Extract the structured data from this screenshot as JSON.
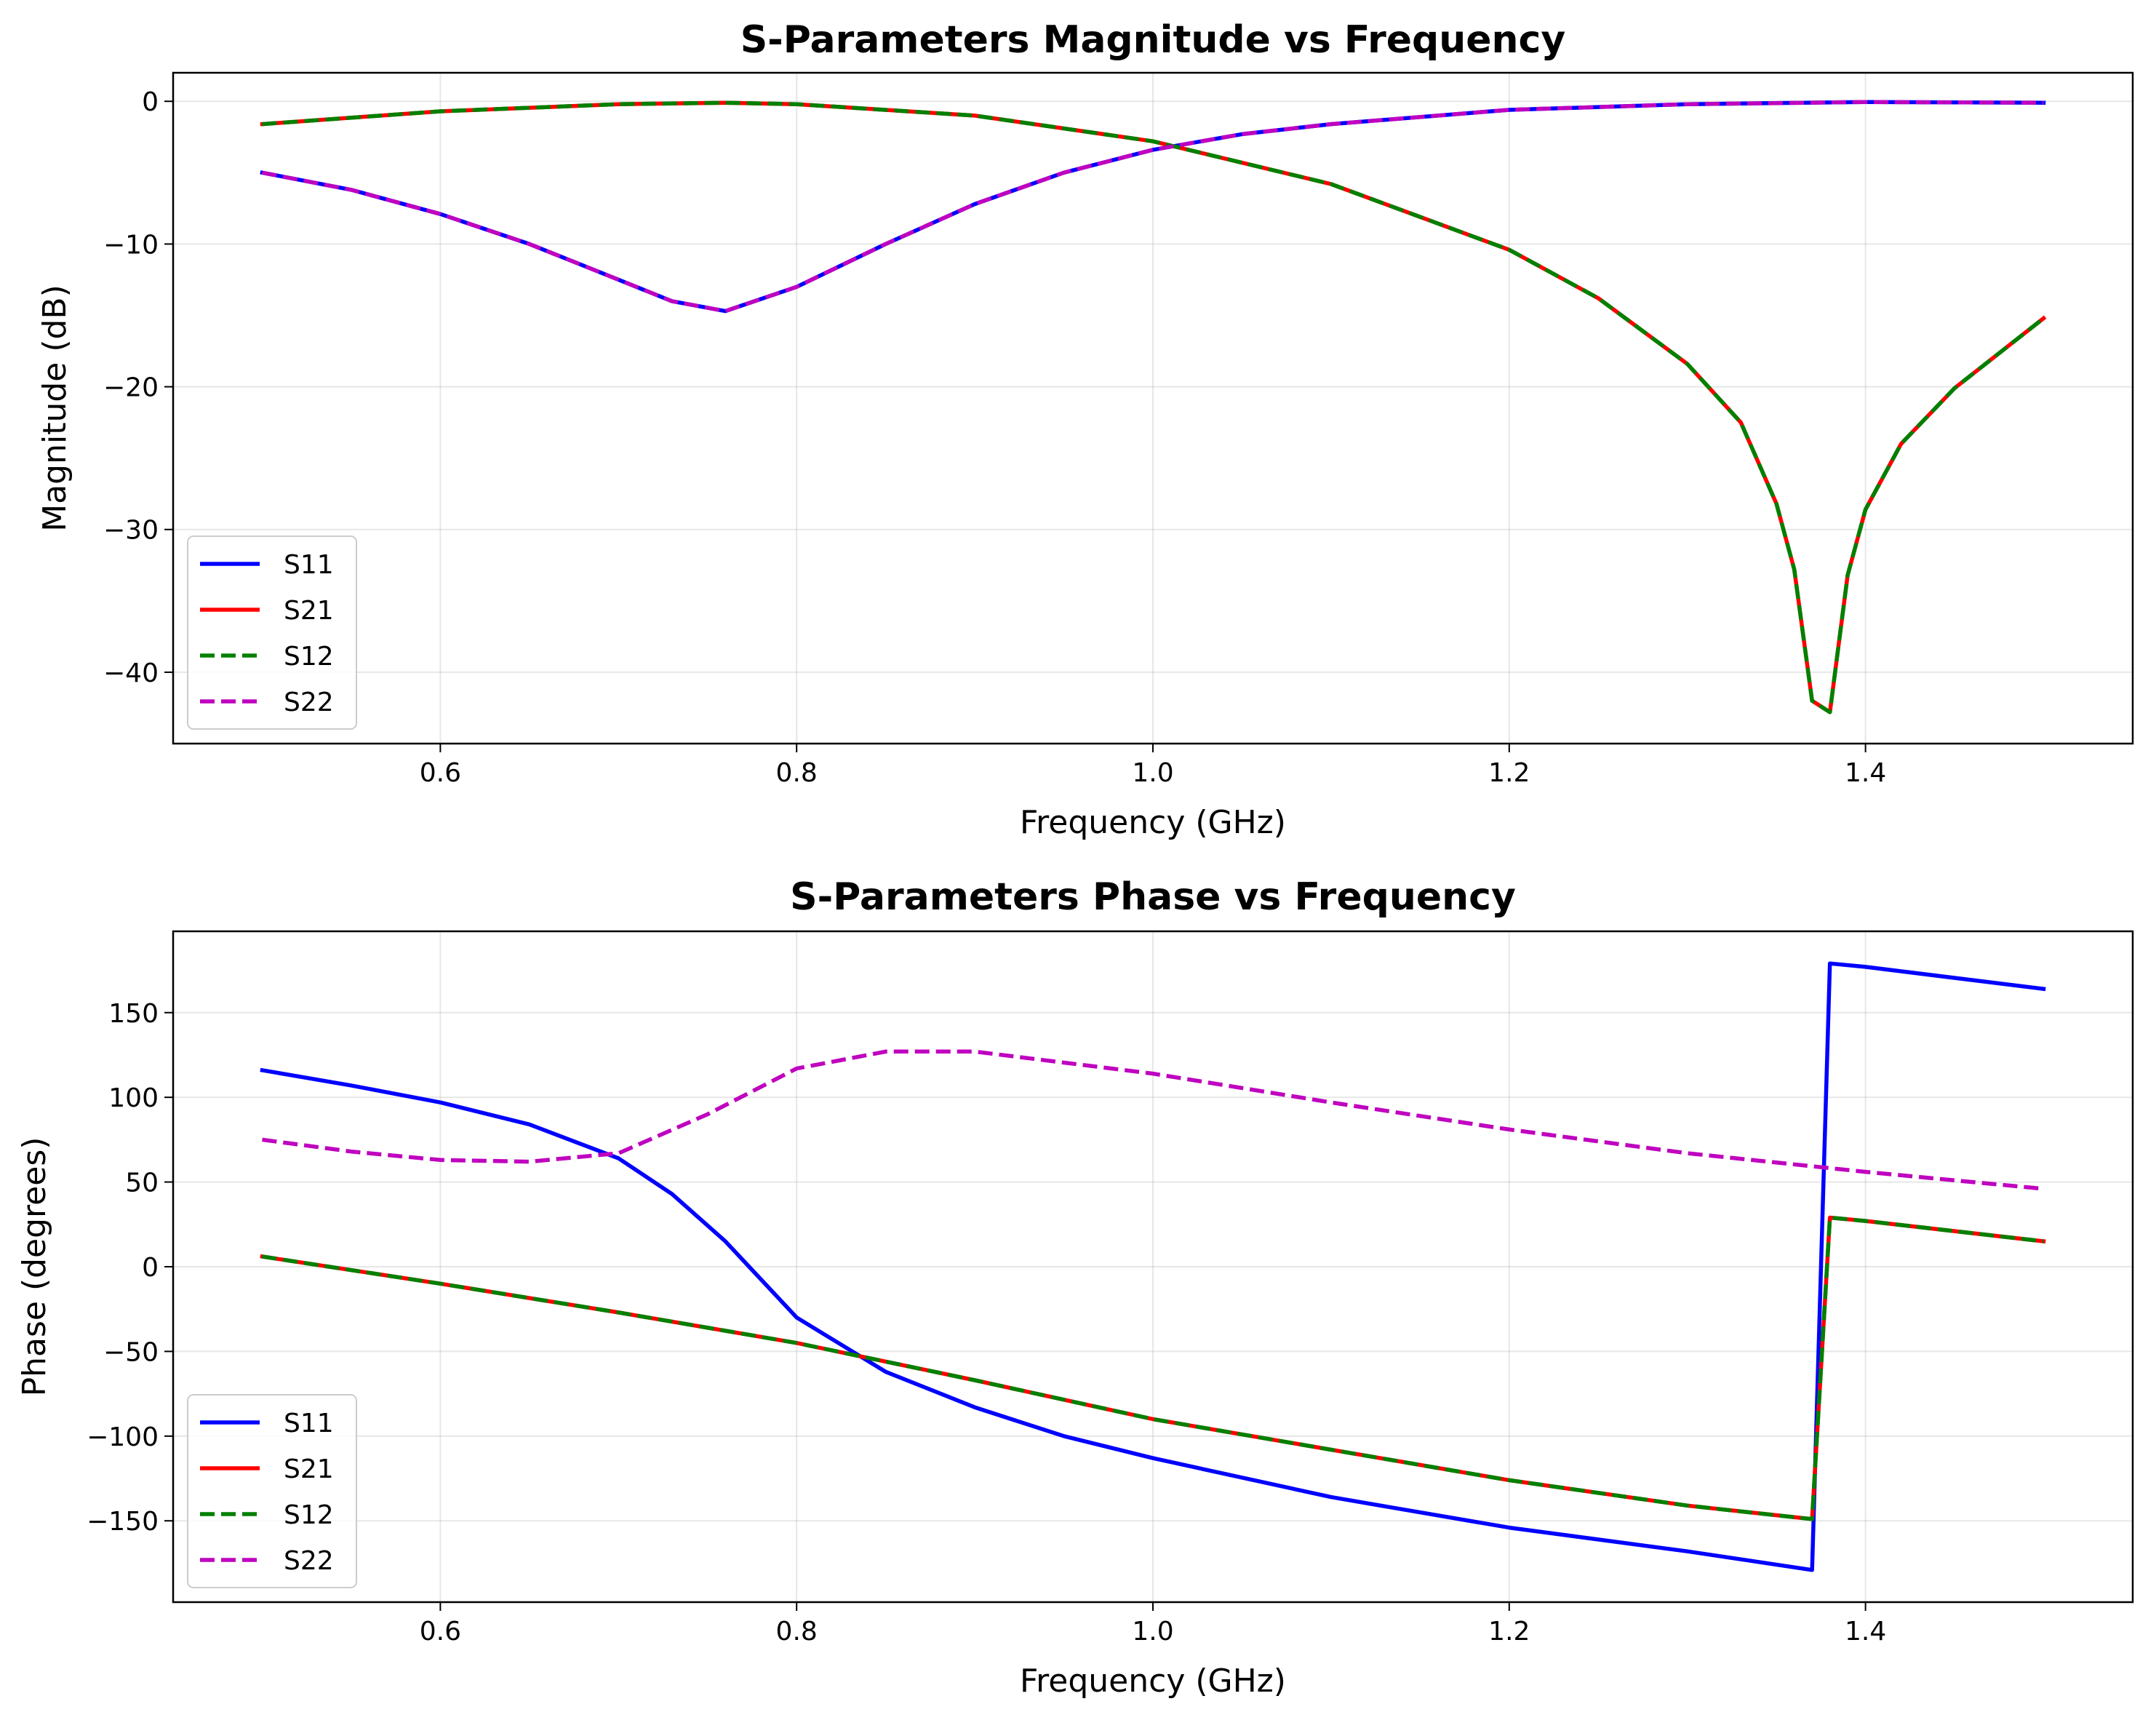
{
  "chart_data": [
    {
      "type": "line",
      "title": "S-Parameters Magnitude vs Frequency",
      "xlabel": "Frequency (GHz)",
      "ylabel": "Magnitude (dB)",
      "xlim": [
        0.45,
        1.55
      ],
      "ylim": [
        -45,
        2
      ],
      "xticks": [
        0.6,
        0.8,
        1.0,
        1.2,
        1.4
      ],
      "xtick_labels": [
        "0.6",
        "0.8",
        "1.0",
        "1.2",
        "1.4"
      ],
      "yticks": [
        0,
        -10,
        -20,
        -30,
        -40
      ],
      "ytick_labels": [
        "0",
        "−10",
        "−20",
        "−30",
        "−40"
      ],
      "grid": true,
      "legend_position": "lower-left",
      "series": [
        {
          "name": "S11",
          "color": "#0000ff",
          "dash": "solid",
          "x": [
            0.5,
            0.55,
            0.6,
            0.65,
            0.7,
            0.73,
            0.76,
            0.8,
            0.85,
            0.9,
            0.95,
            1.0,
            1.05,
            1.1,
            1.2,
            1.3,
            1.4,
            1.5
          ],
          "y": [
            -5.0,
            -6.2,
            -7.9,
            -10.0,
            -12.5,
            -14.0,
            -14.7,
            -13.0,
            -10.0,
            -7.2,
            -5.0,
            -3.4,
            -2.3,
            -1.6,
            -0.6,
            -0.2,
            -0.05,
            -0.1
          ]
        },
        {
          "name": "S21",
          "color": "#ff0000",
          "dash": "solid",
          "x": [
            0.5,
            0.6,
            0.7,
            0.76,
            0.8,
            0.9,
            1.0,
            1.1,
            1.2,
            1.25,
            1.3,
            1.33,
            1.35,
            1.36,
            1.37,
            1.38,
            1.39,
            1.4,
            1.42,
            1.45,
            1.5
          ],
          "y": [
            -1.6,
            -0.7,
            -0.2,
            -0.1,
            -0.2,
            -1.0,
            -2.8,
            -5.8,
            -10.4,
            -13.8,
            -18.4,
            -22.5,
            -28.2,
            -32.8,
            -42.0,
            -42.8,
            -33.2,
            -28.6,
            -24.0,
            -20.1,
            -15.2
          ]
        },
        {
          "name": "S12",
          "color": "#008000",
          "dash": "dashed",
          "x": [
            0.5,
            0.6,
            0.7,
            0.76,
            0.8,
            0.9,
            1.0,
            1.1,
            1.2,
            1.25,
            1.3,
            1.33,
            1.35,
            1.36,
            1.37,
            1.38,
            1.39,
            1.4,
            1.42,
            1.45,
            1.5
          ],
          "y": [
            -1.6,
            -0.7,
            -0.2,
            -0.1,
            -0.2,
            -1.0,
            -2.8,
            -5.8,
            -10.4,
            -13.8,
            -18.4,
            -22.5,
            -28.2,
            -32.8,
            -42.0,
            -42.8,
            -33.2,
            -28.6,
            -24.0,
            -20.1,
            -15.2
          ]
        },
        {
          "name": "S22",
          "color": "#bf00bf",
          "dash": "dashed",
          "x": [
            0.5,
            0.55,
            0.6,
            0.65,
            0.7,
            0.73,
            0.76,
            0.8,
            0.85,
            0.9,
            0.95,
            1.0,
            1.05,
            1.1,
            1.2,
            1.3,
            1.4,
            1.5
          ],
          "y": [
            -5.0,
            -6.2,
            -7.9,
            -10.0,
            -12.5,
            -14.0,
            -14.7,
            -13.0,
            -10.0,
            -7.2,
            -5.0,
            -3.4,
            -2.3,
            -1.6,
            -0.6,
            -0.2,
            -0.05,
            -0.1
          ]
        }
      ]
    },
    {
      "type": "line",
      "title": "S-Parameters Phase vs Frequency",
      "xlabel": "Frequency (GHz)",
      "ylabel": "Phase (degrees)",
      "xlim": [
        0.45,
        1.55
      ],
      "ylim": [
        -198,
        198
      ],
      "xticks": [
        0.6,
        0.8,
        1.0,
        1.2,
        1.4
      ],
      "xtick_labels": [
        "0.6",
        "0.8",
        "1.0",
        "1.2",
        "1.4"
      ],
      "yticks": [
        150,
        100,
        50,
        0,
        -50,
        -100,
        -150
      ],
      "ytick_labels": [
        "150",
        "100",
        "50",
        "0",
        "−50",
        "−100",
        "−150"
      ],
      "grid": true,
      "legend_position": "lower-left",
      "series": [
        {
          "name": "S11",
          "color": "#0000ff",
          "dash": "solid",
          "x": [
            0.5,
            0.55,
            0.6,
            0.65,
            0.7,
            0.73,
            0.76,
            0.8,
            0.85,
            0.9,
            0.95,
            1.0,
            1.1,
            1.2,
            1.3,
            1.37,
            1.38,
            1.4,
            1.5
          ],
          "y": [
            116,
            107,
            97,
            84,
            64,
            43,
            15,
            -30,
            -62,
            -83,
            -100,
            -113,
            -136,
            -154,
            -168,
            -179,
            179,
            177,
            164
          ]
        },
        {
          "name": "S21",
          "color": "#ff0000",
          "dash": "solid",
          "x": [
            0.5,
            0.6,
            0.7,
            0.8,
            0.9,
            1.0,
            1.1,
            1.2,
            1.3,
            1.37,
            1.38,
            1.4,
            1.5
          ],
          "y": [
            6,
            -10,
            -27,
            -45,
            -67,
            -90,
            -108,
            -126,
            -141,
            -149,
            29,
            27,
            15
          ]
        },
        {
          "name": "S12",
          "color": "#008000",
          "dash": "dashed",
          "x": [
            0.5,
            0.6,
            0.7,
            0.8,
            0.9,
            1.0,
            1.1,
            1.2,
            1.3,
            1.37,
            1.38,
            1.4,
            1.5
          ],
          "y": [
            6,
            -10,
            -27,
            -45,
            -67,
            -90,
            -108,
            -126,
            -141,
            -149,
            29,
            27,
            15
          ]
        },
        {
          "name": "S22",
          "color": "#bf00bf",
          "dash": "dashed",
          "x": [
            0.5,
            0.55,
            0.6,
            0.65,
            0.7,
            0.75,
            0.8,
            0.85,
            0.9,
            1.0,
            1.1,
            1.2,
            1.3,
            1.4,
            1.5
          ],
          "y": [
            75,
            68,
            63,
            62,
            67,
            90,
            117,
            127,
            127,
            114,
            97,
            81,
            67,
            56,
            46
          ]
        }
      ]
    }
  ]
}
